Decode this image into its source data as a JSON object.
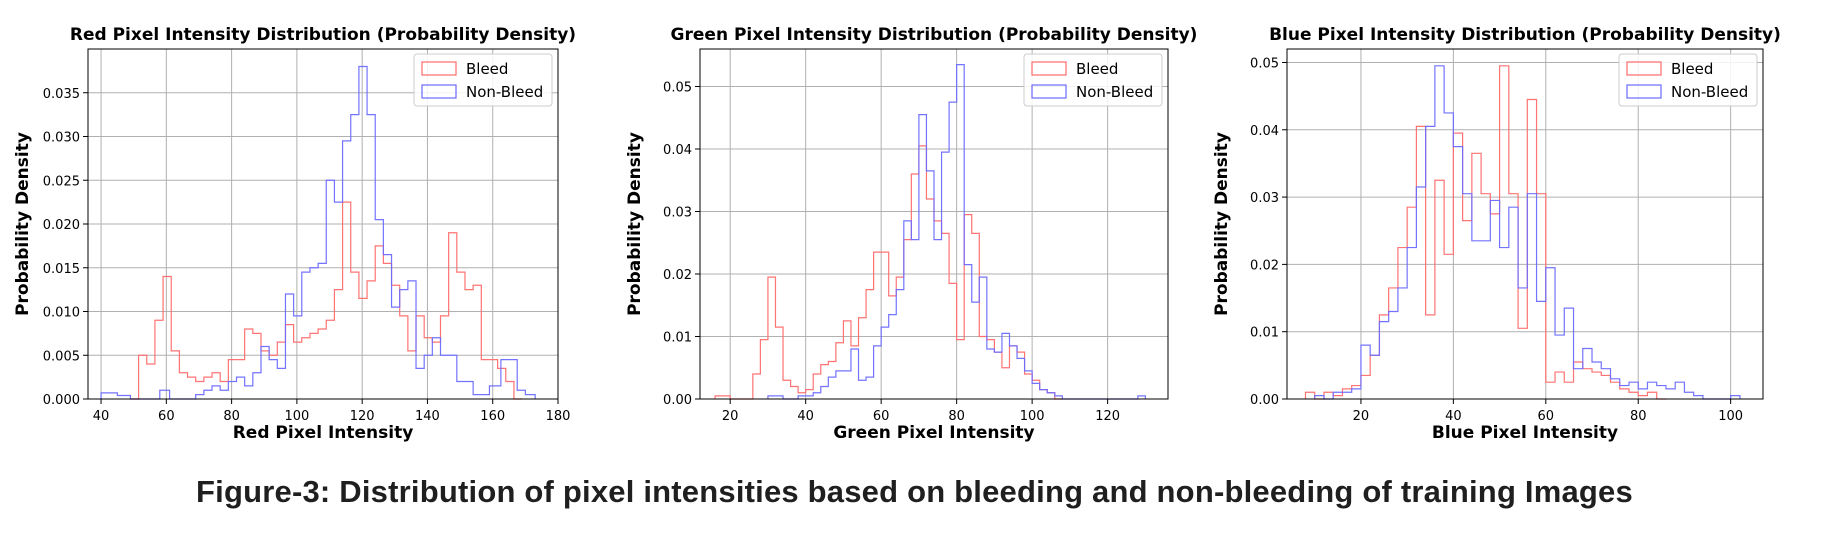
{
  "caption": "Figure-3: Distribution of pixel intensities based on bleeding and non-bleeding of training Images",
  "colors": {
    "bleed": "#ff6b6b",
    "non_bleed": "#6b6bff",
    "grid": "#b0b0b0"
  },
  "chart_data": [
    {
      "type": "histogram",
      "title": "Red Pixel Intensity Distribution (Probability Density)",
      "xlabel": "Red Pixel Intensity",
      "ylabel": "Probability Density",
      "xlim": [
        36,
        180
      ],
      "ylim": [
        0,
        0.04
      ],
      "xticks": [
        40,
        60,
        80,
        100,
        120,
        140,
        160,
        180
      ],
      "yticks": [
        0,
        0.005,
        0.01,
        0.015,
        0.02,
        0.025,
        0.03,
        0.035
      ],
      "ytick_labels": [
        "0.000",
        "0.005",
        "0.010",
        "0.015",
        "0.020",
        "0.025",
        "0.030",
        "0.035"
      ],
      "grid": true,
      "legend": "upper right",
      "series": [
        {
          "name": "Bleed",
          "color": "#ff6b6b",
          "edges": [
            49,
            51.5,
            54,
            56.5,
            59,
            61.5,
            64,
            66.5,
            69,
            71.5,
            74,
            76.5,
            79,
            81.5,
            84,
            86.5,
            89,
            91.5,
            94,
            96.5,
            99,
            101.5,
            104,
            106.5,
            109,
            111.5,
            114,
            116.5,
            119,
            121.5,
            124,
            126.5,
            129,
            131.5,
            134,
            136.5,
            139,
            141.5,
            144,
            146.5,
            149,
            151.5,
            154,
            156.5,
            159,
            161.5,
            164,
            166.5,
            169
          ],
          "density": [
            0.0,
            0.005,
            0.004,
            0.009,
            0.014,
            0.0055,
            0.003,
            0.0025,
            0.002,
            0.0025,
            0.003,
            0.002,
            0.0045,
            0.0045,
            0.008,
            0.0075,
            0.0055,
            0.005,
            0.0065,
            0.0085,
            0.0065,
            0.007,
            0.0075,
            0.008,
            0.009,
            0.0125,
            0.0225,
            0.0145,
            0.0115,
            0.0135,
            0.0175,
            0.0155,
            0.013,
            0.0095,
            0.0055,
            0.0095,
            0.007,
            0.0065,
            0.0095,
            0.019,
            0.0145,
            0.0125,
            0.013,
            0.0045,
            0.0045,
            0.0035,
            0.002,
            0.0
          ]
        },
        {
          "name": "Non-Bleed",
          "color": "#6b6bff",
          "edges": [
            40,
            45,
            49,
            58,
            61,
            69,
            71.5,
            74,
            76.5,
            79,
            81.5,
            84,
            86.5,
            89,
            91.5,
            94,
            96.5,
            99,
            101.5,
            104,
            106.5,
            109,
            111.5,
            114,
            116.5,
            119,
            121.5,
            124,
            126.5,
            129,
            131.5,
            134,
            136.5,
            139,
            141.5,
            144,
            149,
            154,
            159,
            162.5,
            165,
            167.5,
            170,
            173
          ],
          "density": [
            0.0007,
            0.0004,
            0.0,
            0.001,
            0.0,
            0.0005,
            0.001,
            0.0015,
            0.001,
            0.002,
            0.0025,
            0.0015,
            0.003,
            0.006,
            0.0045,
            0.0035,
            0.012,
            0.0095,
            0.0145,
            0.015,
            0.0155,
            0.025,
            0.0225,
            0.0295,
            0.0325,
            0.038,
            0.0325,
            0.0205,
            0.0165,
            0.0105,
            0.0125,
            0.0135,
            0.0035,
            0.005,
            0.007,
            0.005,
            0.002,
            0.0005,
            0.0015,
            0.0045,
            0.0045,
            0.001,
            0.0005
          ]
        }
      ]
    },
    {
      "type": "histogram",
      "title": "Green Pixel Intensity Distribution (Probability Density)",
      "xlabel": "Green Pixel Intensity",
      "ylabel": "Probability Density",
      "xlim": [
        12,
        136
      ],
      "ylim": [
        0,
        0.056
      ],
      "xticks": [
        20,
        40,
        60,
        80,
        100,
        120
      ],
      "yticks": [
        0,
        0.01,
        0.02,
        0.03,
        0.04,
        0.05
      ],
      "ytick_labels": [
        "0.00",
        "0.01",
        "0.02",
        "0.03",
        "0.04",
        "0.05"
      ],
      "grid": true,
      "legend": "upper right",
      "series": [
        {
          "name": "Bleed",
          "color": "#ff6b6b",
          "edges": [
            16,
            20,
            26,
            28,
            30,
            32,
            34,
            36,
            38,
            40,
            42,
            44,
            46,
            48,
            50,
            52,
            54,
            56,
            58,
            60,
            62,
            64,
            66,
            68,
            70,
            72,
            74,
            76,
            78,
            80,
            82,
            84,
            86,
            88,
            90,
            92,
            94,
            96,
            98,
            100,
            102,
            104,
            106,
            108
          ],
          "density": [
            0.0005,
            0.0,
            0.004,
            0.0095,
            0.0195,
            0.0115,
            0.003,
            0.002,
            0.001,
            0.0015,
            0.004,
            0.0055,
            0.006,
            0.009,
            0.0125,
            0.0085,
            0.013,
            0.0175,
            0.0235,
            0.0235,
            0.0165,
            0.0195,
            0.0255,
            0.036,
            0.0405,
            0.032,
            0.0285,
            0.0265,
            0.0185,
            0.0095,
            0.0295,
            0.0265,
            0.01,
            0.0095,
            0.0075,
            0.005,
            0.0085,
            0.0075,
            0.004,
            0.003,
            0.0015,
            0.001,
            0.0
          ]
        },
        {
          "name": "Non-Bleed",
          "color": "#6b6bff",
          "edges": [
            30,
            34,
            38,
            42,
            44,
            46,
            48,
            50,
            52,
            54,
            56,
            58,
            60,
            62,
            64,
            66,
            68,
            70,
            72,
            74,
            76,
            78,
            80,
            82,
            84,
            86,
            88,
            90,
            92,
            94,
            96,
            98,
            100,
            102,
            104,
            106,
            108,
            114,
            128,
            130
          ],
          "density": [
            0.0005,
            0.0,
            0.0005,
            0.001,
            0.002,
            0.0035,
            0.0045,
            0.0045,
            0.008,
            0.003,
            0.0035,
            0.0085,
            0.0115,
            0.0135,
            0.0175,
            0.0285,
            0.0255,
            0.0455,
            0.0365,
            0.0255,
            0.0395,
            0.0475,
            0.0535,
            0.0215,
            0.0155,
            0.0195,
            0.008,
            0.0075,
            0.0105,
            0.0085,
            0.0065,
            0.0045,
            0.0025,
            0.0015,
            0.001,
            0.0005,
            0.0,
            0.0,
            0.0005
          ]
        }
      ]
    },
    {
      "type": "histogram",
      "title": "Blue Pixel Intensity Distribution (Probability Density)",
      "xlabel": "Blue Pixel Intensity",
      "ylabel": "Probability Density",
      "xlim": [
        4,
        107
      ],
      "ylim": [
        0,
        0.052
      ],
      "xticks": [
        20,
        40,
        60,
        80,
        100
      ],
      "yticks": [
        0,
        0.01,
        0.02,
        0.03,
        0.04,
        0.05
      ],
      "ytick_labels": [
        "0.00",
        "0.01",
        "0.02",
        "0.03",
        "0.04",
        "0.05"
      ],
      "grid": true,
      "legend": "upper right",
      "series": [
        {
          "name": "Bleed",
          "color": "#ff6b6b",
          "edges": [
            8,
            10,
            12,
            14,
            16,
            18,
            20,
            22,
            24,
            26,
            28,
            30,
            32,
            34,
            36,
            38,
            40,
            42,
            44,
            46,
            48,
            50,
            52,
            54,
            56,
            58,
            60,
            62,
            64,
            66,
            68,
            70,
            72,
            74,
            76,
            78,
            80,
            82,
            84,
            86
          ],
          "density": [
            0.001,
            0.0,
            0.001,
            0.0005,
            0.0015,
            0.002,
            0.0035,
            0.0065,
            0.0125,
            0.0165,
            0.0225,
            0.0285,
            0.0405,
            0.0125,
            0.0325,
            0.0215,
            0.0395,
            0.0265,
            0.0365,
            0.0305,
            0.0275,
            0.0495,
            0.0305,
            0.0105,
            0.0445,
            0.0305,
            0.0025,
            0.004,
            0.0025,
            0.0055,
            0.0045,
            0.004,
            0.0035,
            0.0025,
            0.0015,
            0.001,
            0.0005,
            0.001,
            0.0
          ]
        },
        {
          "name": "Non-Bleed",
          "color": "#6b6bff",
          "edges": [
            10,
            12,
            14,
            18,
            20,
            22,
            24,
            26,
            28,
            30,
            32,
            34,
            36,
            38,
            40,
            42,
            44,
            46,
            48,
            50,
            52,
            54,
            56,
            58,
            60,
            62,
            64,
            66,
            68,
            70,
            72,
            74,
            76,
            78,
            80,
            82,
            84,
            86,
            88,
            90,
            92,
            94,
            100,
            102
          ],
          "density": [
            0.0005,
            0.0,
            0.001,
            0.0015,
            0.008,
            0.0065,
            0.0115,
            0.013,
            0.0165,
            0.0225,
            0.0315,
            0.0405,
            0.0495,
            0.0425,
            0.0375,
            0.0305,
            0.0235,
            0.0235,
            0.0295,
            0.0225,
            0.0285,
            0.0165,
            0.0305,
            0.0145,
            0.0195,
            0.0095,
            0.0135,
            0.0045,
            0.0075,
            0.0055,
            0.0045,
            0.003,
            0.002,
            0.0025,
            0.0015,
            0.0025,
            0.002,
            0.0015,
            0.0025,
            0.001,
            0.0005,
            0.0,
            0.0005
          ]
        }
      ]
    }
  ]
}
